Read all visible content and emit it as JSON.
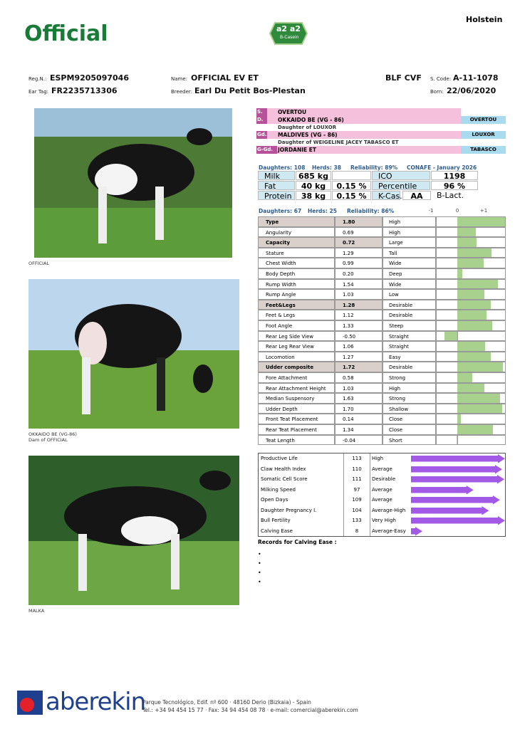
{
  "header": {
    "breed": "Holstein",
    "status": "Official",
    "logo_main": "a2 a2",
    "logo_sub": "B-Casein"
  },
  "identity": {
    "reg_label": "Reg.N.:",
    "reg": "ESPM9205097046",
    "name_label": "Name:",
    "name": "OFFICIAL EV ET",
    "codes": "BLF CVF",
    "scode_label": "S. Code:",
    "scode": "A-11-1078",
    "eartag_label": "Ear Tag:",
    "eartag": "FR2235713306",
    "breeder_label": "Breeder:",
    "breeder": "Earl Du Petit Bos-Plestan",
    "born_label": "Born:",
    "born": "22/06/2020"
  },
  "photos": [
    {
      "caption": [
        "OFFICIAL"
      ]
    },
    {
      "caption": [
        "OKKAIDO BE (VG-86)",
        "Dam of OFFICIAL"
      ]
    },
    {
      "caption": [
        "MALKA"
      ]
    }
  ],
  "pedigree": {
    "rows": [
      {
        "tag": "S.",
        "name": "OVERTOU"
      },
      {
        "tag": "D.",
        "name": "OKKAIDO BE  (VG - 86)",
        "sire": "OVERTOU"
      },
      {
        "note": "Daughter of LOUXOR"
      },
      {
        "tag": "Gd.",
        "name": "MALDIVES  (VG - 86)",
        "sire": "LOUXOR"
      },
      {
        "note": "Daughter of WEIGELINE JACEY TABASCO ET"
      },
      {
        "tag": "G-Gd.",
        "name": "JORDANIE ET",
        "sire": "TABASCO"
      }
    ]
  },
  "production": {
    "daughters": "Daughters: 108",
    "herds": "Herds: 38",
    "reliability": "Reliability: 89%",
    "source": "CONAFE - January 2026",
    "rows": [
      {
        "trait": "Milk",
        "amount": "685 kg",
        "index_label": "ICO",
        "index": 1198
      },
      {
        "trait": "Fat",
        "amount": "40 kg",
        "pct": "0.15 %",
        "index_label": "Percentile",
        "index": "96 %"
      },
      {
        "trait": "Protein",
        "amount": "38 kg",
        "pct": "0.15 %",
        "index_label": "K-Cas.",
        "index": "AA",
        "extra": "B-Lact."
      }
    ]
  },
  "type": {
    "daughters": "Daughters: 67",
    "herds": "Herds: 25",
    "reliability": "Reliability: 86%",
    "ticks": [
      {
        "value": -1,
        "label": "-1"
      },
      0,
      {
        "value": 1,
        "label": "+1"
      }
    ],
    "color": "#a9d18e",
    "rows": [
      {
        "trait": "Type",
        "value": 1.8,
        "value_label": "1.80",
        "description": "High",
        "group": true
      },
      {
        "trait": "Angularity",
        "value": 0.69,
        "description": "High"
      },
      {
        "trait": "Capacity",
        "value": 0.72,
        "description": "Large",
        "group": true
      },
      {
        "trait": "Stature",
        "value": 1.29,
        "description": "Tall"
      },
      {
        "trait": "Chest Width",
        "value": 0.99,
        "description": "Wide"
      },
      {
        "trait": "Body Depth",
        "value": 0.2,
        "value_label": "0.20",
        "description": "Deep"
      },
      {
        "trait": "Rump Width",
        "value": 1.54,
        "description": "Wide"
      },
      {
        "trait": "Rump Angle",
        "value": 1.03,
        "description": "Low"
      },
      {
        "trait": "Feet&Legs",
        "value": 1.28,
        "description": "Desirable",
        "group": true
      },
      {
        "trait": "Feet & Legs",
        "value": 1.12,
        "description": "Desirable"
      },
      {
        "trait": "Foot Angle",
        "value": 1.33,
        "description": "Steep"
      },
      {
        "trait": "Rear Leg Side View",
        "value": -0.5,
        "value_label": "-0.50",
        "description": "Straight"
      },
      {
        "trait": "Rear Leg Rear View",
        "value": 1.06,
        "description": "Straight"
      },
      {
        "trait": "Locomotion",
        "value": 1.27,
        "description": "Easy"
      },
      {
        "trait": "Udder composite",
        "value": 1.72,
        "description": "Desirable",
        "group": true
      },
      {
        "trait": "Fore Attachment",
        "value": 0.58,
        "description": "Strong"
      },
      {
        "trait": "Rear Attachment Height",
        "value": 1.03,
        "description": "High"
      },
      {
        "trait": "Median Suspensory",
        "value": 1.63,
        "description": "Strong"
      },
      {
        "trait": "Udder Depth",
        "value": 1.7,
        "value_label": "1.70",
        "description": "Shallow"
      },
      {
        "trait": "Front Teat Placement",
        "value": 0.14,
        "description": "Close"
      },
      {
        "trait": "Rear Teat Placement",
        "value": 1.34,
        "description": "Close"
      },
      {
        "trait": "Teat Length",
        "value": -0.04,
        "description": "Short"
      }
    ]
  },
  "health": {
    "color": "#a25ae6",
    "rows": [
      {
        "trait": "Productive Life",
        "value": 113,
        "description": "High"
      },
      {
        "trait": "Claw Health Index",
        "value": 110,
        "description": "Average"
      },
      {
        "trait": "Somatic Cell Score",
        "value": 111,
        "description": "Desirable"
      },
      {
        "trait": "Milking Speed",
        "value": 97,
        "description": "Average"
      },
      {
        "trait": "Open Days",
        "value": 109,
        "description": "Average"
      },
      {
        "trait": "Daughter Pregnancy I.",
        "value": 104,
        "description": "Average-High"
      },
      {
        "trait": "Bull Fertility",
        "value": 133,
        "description": "Very High"
      },
      {
        "trait": "Calving Ease",
        "value": 8,
        "description": "Average-Easy"
      }
    ],
    "records_title": "Records for Calving Ease :"
  },
  "footer": {
    "brand": "aberekin",
    "address": "Parque Tecnológico, Edif. nº 600 · 48160 Derio (Bizkaia) - Spain",
    "contact": "Tel.: +34 94 454 15 77 · Fax: 34 94 454 08 78 · e-mail: comercial@aberekin.com"
  }
}
